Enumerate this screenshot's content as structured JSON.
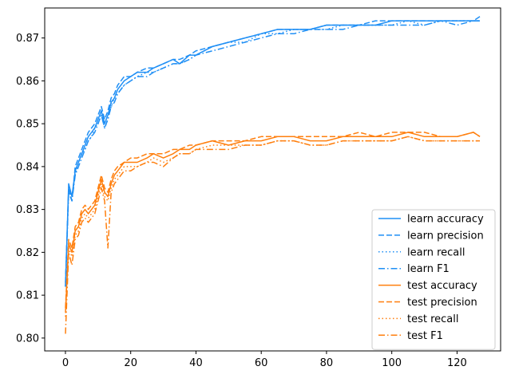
{
  "chart_data": {
    "type": "line",
    "title": "",
    "xlabel": "",
    "ylabel": "",
    "xlim": [
      -6.35,
      133.35
    ],
    "ylim": [
      0.797,
      0.877
    ],
    "x_ticks": [
      0,
      20,
      40,
      60,
      80,
      100,
      120
    ],
    "y_ticks": [
      0.8,
      0.81,
      0.82,
      0.83,
      0.84,
      0.85,
      0.86,
      0.87
    ],
    "y_tick_labels": [
      "0.80",
      "0.81",
      "0.82",
      "0.83",
      "0.84",
      "0.85",
      "0.86",
      "0.87"
    ],
    "grid": false,
    "legend_position": "lower-right",
    "x": [
      0,
      1,
      2,
      3,
      4,
      5,
      6,
      7,
      8,
      9,
      10,
      11,
      12,
      13,
      14,
      15,
      16,
      18,
      20,
      22,
      25,
      27,
      30,
      33,
      35,
      38,
      40,
      45,
      50,
      55,
      60,
      65,
      70,
      75,
      80,
      85,
      90,
      95,
      100,
      105,
      110,
      115,
      120,
      125,
      127
    ],
    "series": [
      {
        "name": "learn accuracy",
        "color": "#1f8ff5",
        "dash": "solid",
        "values": [
          0.812,
          0.836,
          0.833,
          0.839,
          0.841,
          0.843,
          0.845,
          0.847,
          0.848,
          0.849,
          0.851,
          0.853,
          0.85,
          0.852,
          0.855,
          0.856,
          0.858,
          0.86,
          0.861,
          0.862,
          0.862,
          0.863,
          0.864,
          0.865,
          0.864,
          0.866,
          0.866,
          0.868,
          0.869,
          0.87,
          0.871,
          0.872,
          0.872,
          0.872,
          0.873,
          0.873,
          0.873,
          0.873,
          0.874,
          0.874,
          0.874,
          0.874,
          0.874,
          0.874,
          0.874
        ]
      },
      {
        "name": "learn precision",
        "color": "#1f8ff5",
        "dash": "dashed",
        "values": [
          0.813,
          0.835,
          0.832,
          0.84,
          0.842,
          0.844,
          0.846,
          0.848,
          0.849,
          0.85,
          0.852,
          0.854,
          0.851,
          0.853,
          0.856,
          0.857,
          0.859,
          0.861,
          0.861,
          0.862,
          0.863,
          0.863,
          0.864,
          0.865,
          0.865,
          0.866,
          0.867,
          0.868,
          0.869,
          0.87,
          0.871,
          0.872,
          0.872,
          0.872,
          0.873,
          0.873,
          0.873,
          0.874,
          0.874,
          0.874,
          0.874,
          0.874,
          0.874,
          0.874,
          0.875
        ]
      },
      {
        "name": "learn recall",
        "color": "#1f8ff5",
        "dash": "dotted",
        "values": [
          0.812,
          0.835,
          0.833,
          0.838,
          0.841,
          0.843,
          0.844,
          0.846,
          0.847,
          0.849,
          0.85,
          0.852,
          0.849,
          0.851,
          0.854,
          0.856,
          0.857,
          0.859,
          0.86,
          0.861,
          0.862,
          0.862,
          0.863,
          0.864,
          0.864,
          0.865,
          0.866,
          0.868,
          0.869,
          0.869,
          0.871,
          0.871,
          0.872,
          0.872,
          0.872,
          0.873,
          0.873,
          0.873,
          0.873,
          0.874,
          0.873,
          0.874,
          0.874,
          0.874,
          0.874
        ]
      },
      {
        "name": "learn F1",
        "color": "#1f8ff5",
        "dash": "dashdot",
        "values": [
          0.812,
          0.834,
          0.832,
          0.838,
          0.84,
          0.842,
          0.844,
          0.846,
          0.847,
          0.848,
          0.85,
          0.852,
          0.849,
          0.851,
          0.854,
          0.855,
          0.857,
          0.859,
          0.86,
          0.861,
          0.861,
          0.862,
          0.863,
          0.864,
          0.864,
          0.865,
          0.866,
          0.867,
          0.868,
          0.869,
          0.87,
          0.871,
          0.871,
          0.872,
          0.872,
          0.872,
          0.873,
          0.873,
          0.873,
          0.873,
          0.873,
          0.874,
          0.873,
          0.874,
          0.874
        ]
      },
      {
        "name": "test accuracy",
        "color": "#ff7f0e",
        "dash": "solid",
        "values": [
          0.806,
          0.822,
          0.82,
          0.825,
          0.826,
          0.829,
          0.83,
          0.829,
          0.83,
          0.831,
          0.834,
          0.837,
          0.834,
          0.833,
          0.836,
          0.838,
          0.839,
          0.841,
          0.841,
          0.841,
          0.842,
          0.843,
          0.842,
          0.843,
          0.844,
          0.844,
          0.845,
          0.846,
          0.845,
          0.846,
          0.846,
          0.847,
          0.847,
          0.846,
          0.846,
          0.847,
          0.847,
          0.847,
          0.847,
          0.848,
          0.847,
          0.847,
          0.847,
          0.848,
          0.847
        ]
      },
      {
        "name": "test precision",
        "color": "#ff7f0e",
        "dash": "dashed",
        "values": [
          0.807,
          0.823,
          0.821,
          0.826,
          0.827,
          0.83,
          0.831,
          0.83,
          0.831,
          0.832,
          0.835,
          0.838,
          0.835,
          0.834,
          0.837,
          0.839,
          0.84,
          0.841,
          0.842,
          0.842,
          0.843,
          0.843,
          0.843,
          0.844,
          0.844,
          0.845,
          0.845,
          0.846,
          0.846,
          0.846,
          0.847,
          0.847,
          0.847,
          0.847,
          0.847,
          0.847,
          0.848,
          0.847,
          0.848,
          0.848,
          0.848,
          0.847,
          0.847,
          0.848,
          0.847
        ]
      },
      {
        "name": "test recall",
        "color": "#ff7f0e",
        "dash": "dotted",
        "values": [
          0.805,
          0.821,
          0.819,
          0.824,
          0.825,
          0.828,
          0.829,
          0.828,
          0.829,
          0.83,
          0.833,
          0.836,
          0.833,
          0.832,
          0.835,
          0.837,
          0.838,
          0.84,
          0.84,
          0.84,
          0.841,
          0.842,
          0.841,
          0.842,
          0.843,
          0.843,
          0.844,
          0.845,
          0.845,
          0.845,
          0.845,
          0.846,
          0.846,
          0.845,
          0.845,
          0.846,
          0.846,
          0.846,
          0.846,
          0.847,
          0.846,
          0.846,
          0.846,
          0.846,
          0.846
        ]
      },
      {
        "name": "test F1",
        "color": "#ff7f0e",
        "dash": "dashdot",
        "values": [
          0.801,
          0.82,
          0.817,
          0.823,
          0.824,
          0.827,
          0.828,
          0.827,
          0.828,
          0.829,
          0.832,
          0.835,
          0.832,
          0.821,
          0.834,
          0.836,
          0.837,
          0.839,
          0.839,
          0.84,
          0.841,
          0.841,
          0.84,
          0.842,
          0.843,
          0.843,
          0.844,
          0.844,
          0.844,
          0.845,
          0.845,
          0.846,
          0.846,
          0.845,
          0.845,
          0.846,
          0.846,
          0.846,
          0.846,
          0.847,
          0.846,
          0.846,
          0.846,
          0.846,
          0.846
        ]
      }
    ]
  }
}
